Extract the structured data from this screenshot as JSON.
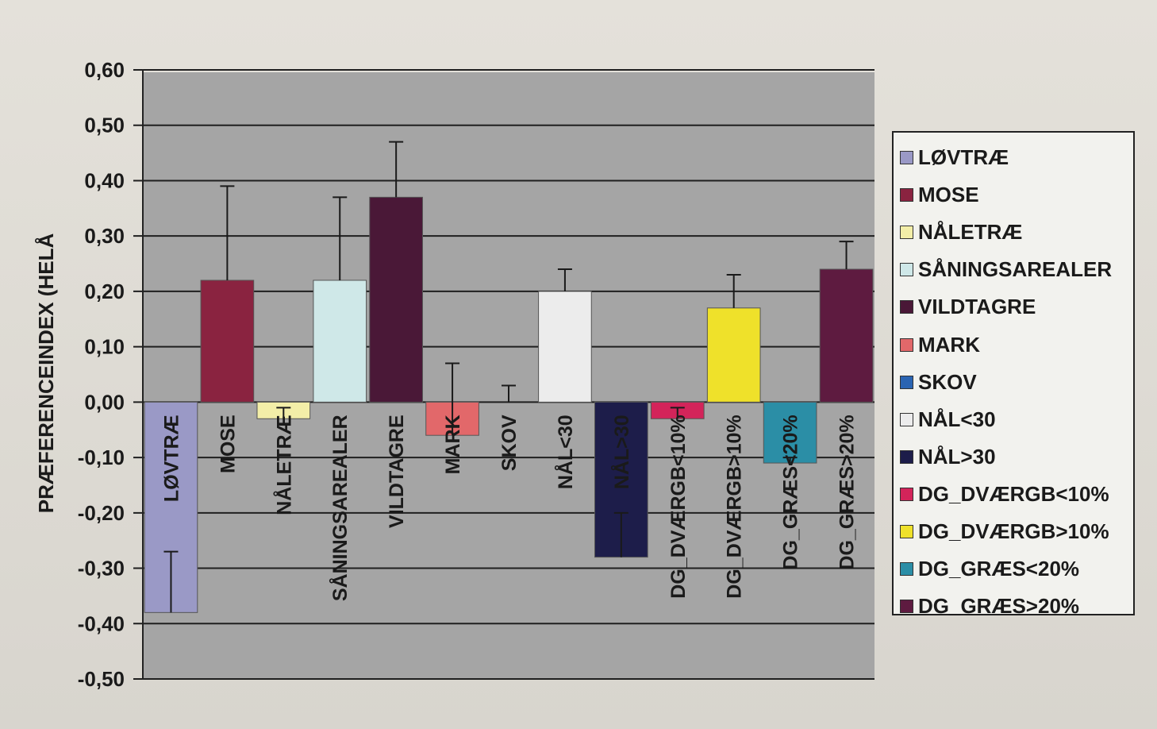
{
  "chart_data": {
    "type": "bar",
    "ylabel": "PRÆFERENCEINDEX (HELÅ",
    "ylim": [
      -0.5,
      0.6
    ],
    "yticks": [
      "0,60",
      "0,50",
      "0,40",
      "0,30",
      "0,20",
      "0,10",
      "0,00",
      "-0,10",
      "-0,20",
      "-0,30",
      "-0,40",
      "-0,50"
    ],
    "ytick_values": [
      0.6,
      0.5,
      0.4,
      0.3,
      0.2,
      0.1,
      0.0,
      -0.1,
      -0.2,
      -0.3,
      -0.4,
      -0.5
    ],
    "grid": true,
    "legend_position": "right",
    "categories": [
      "LØVTRÆ",
      "MOSE",
      "NÅLETRÆ",
      "SÅNINGSAREALER",
      "VILDTAGRE",
      "MARK",
      "SKOV",
      "NÅL<30",
      "NÅL>30",
      "DG_DVÆRGB<10%",
      "DG_DVÆRGB>10%",
      "DG_GRÆS<20%",
      "DG_GRÆS>20%"
    ],
    "values": [
      -0.38,
      0.22,
      -0.03,
      0.22,
      0.37,
      -0.06,
      0.0,
      0.2,
      -0.28,
      -0.03,
      0.17,
      -0.11,
      0.24
    ],
    "error_upper": [
      -0.27,
      0.39,
      -0.01,
      0.37,
      0.47,
      0.07,
      0.03,
      0.24,
      -0.2,
      -0.01,
      0.23,
      -0.1,
      0.29
    ],
    "colors": [
      "#9a99c6",
      "#8a2340",
      "#f3eea8",
      "#cfe8e8",
      "#4a1837",
      "#e2686a",
      "#2a64b2",
      "#ececec",
      "#1d1d4a",
      "#d3245a",
      "#efe12a",
      "#2b8ea6",
      "#5e1b40"
    ]
  }
}
